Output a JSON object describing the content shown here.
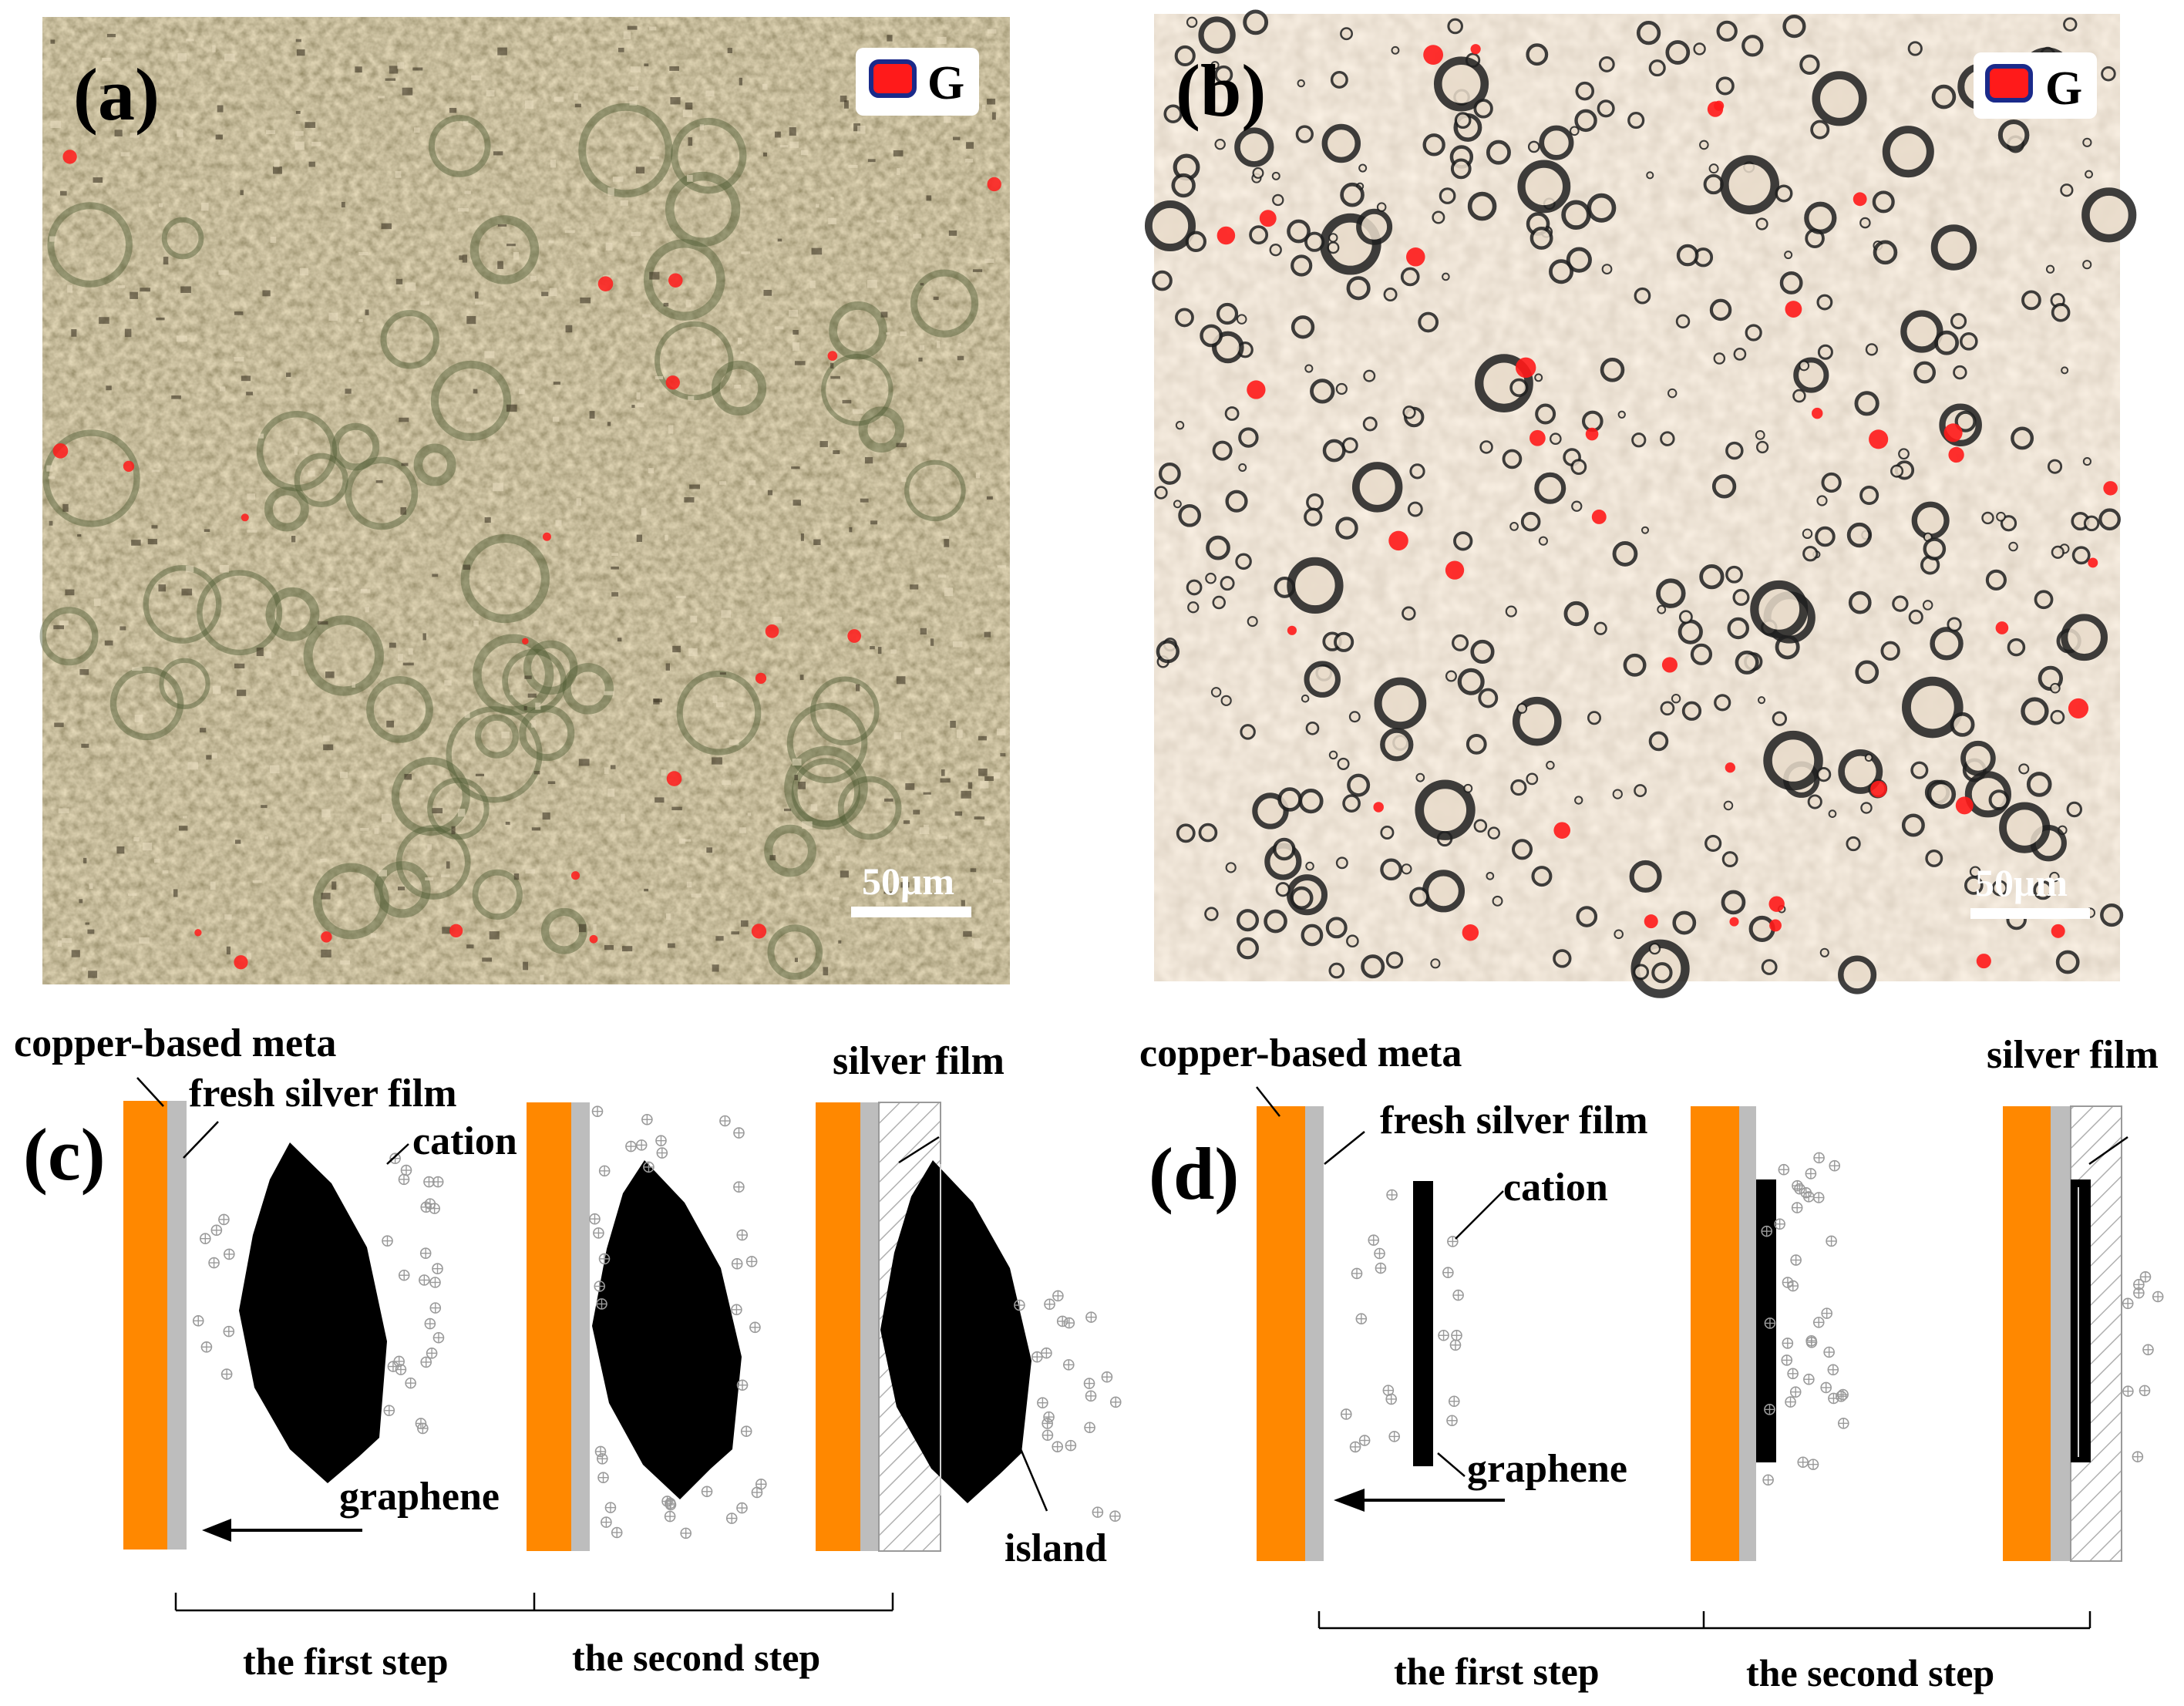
{
  "panels": {
    "a": {
      "letter": "(a)",
      "legend": "G",
      "scale": "50μm"
    },
    "b": {
      "letter": "(b)",
      "legend": "G",
      "scale": "50μm"
    },
    "c": {
      "letter": "(c)",
      "labels": {
        "copper": "copper-based meta",
        "fresh_silver": "fresh silver film",
        "cation": "cation",
        "silver_film": "silver film",
        "graphene": "graphene",
        "island": "island"
      },
      "steps": [
        "the first step",
        "the second step"
      ]
    },
    "d": {
      "letter": "(d)",
      "labels": {
        "copper": "copper-based meta",
        "fresh_silver": "fresh silver film",
        "cation": "cation",
        "silver_film": "silver film",
        "graphene": "graphene"
      },
      "steps": [
        "the first step",
        "the second step"
      ]
    }
  },
  "colors": {
    "copper": "#ff8800",
    "silver": "#bdbdbd",
    "graphene": "#000000",
    "marker": "#ff1a1a",
    "micrograph_a": "#8a7a55",
    "micrograph_b": "#d4c1a5"
  }
}
